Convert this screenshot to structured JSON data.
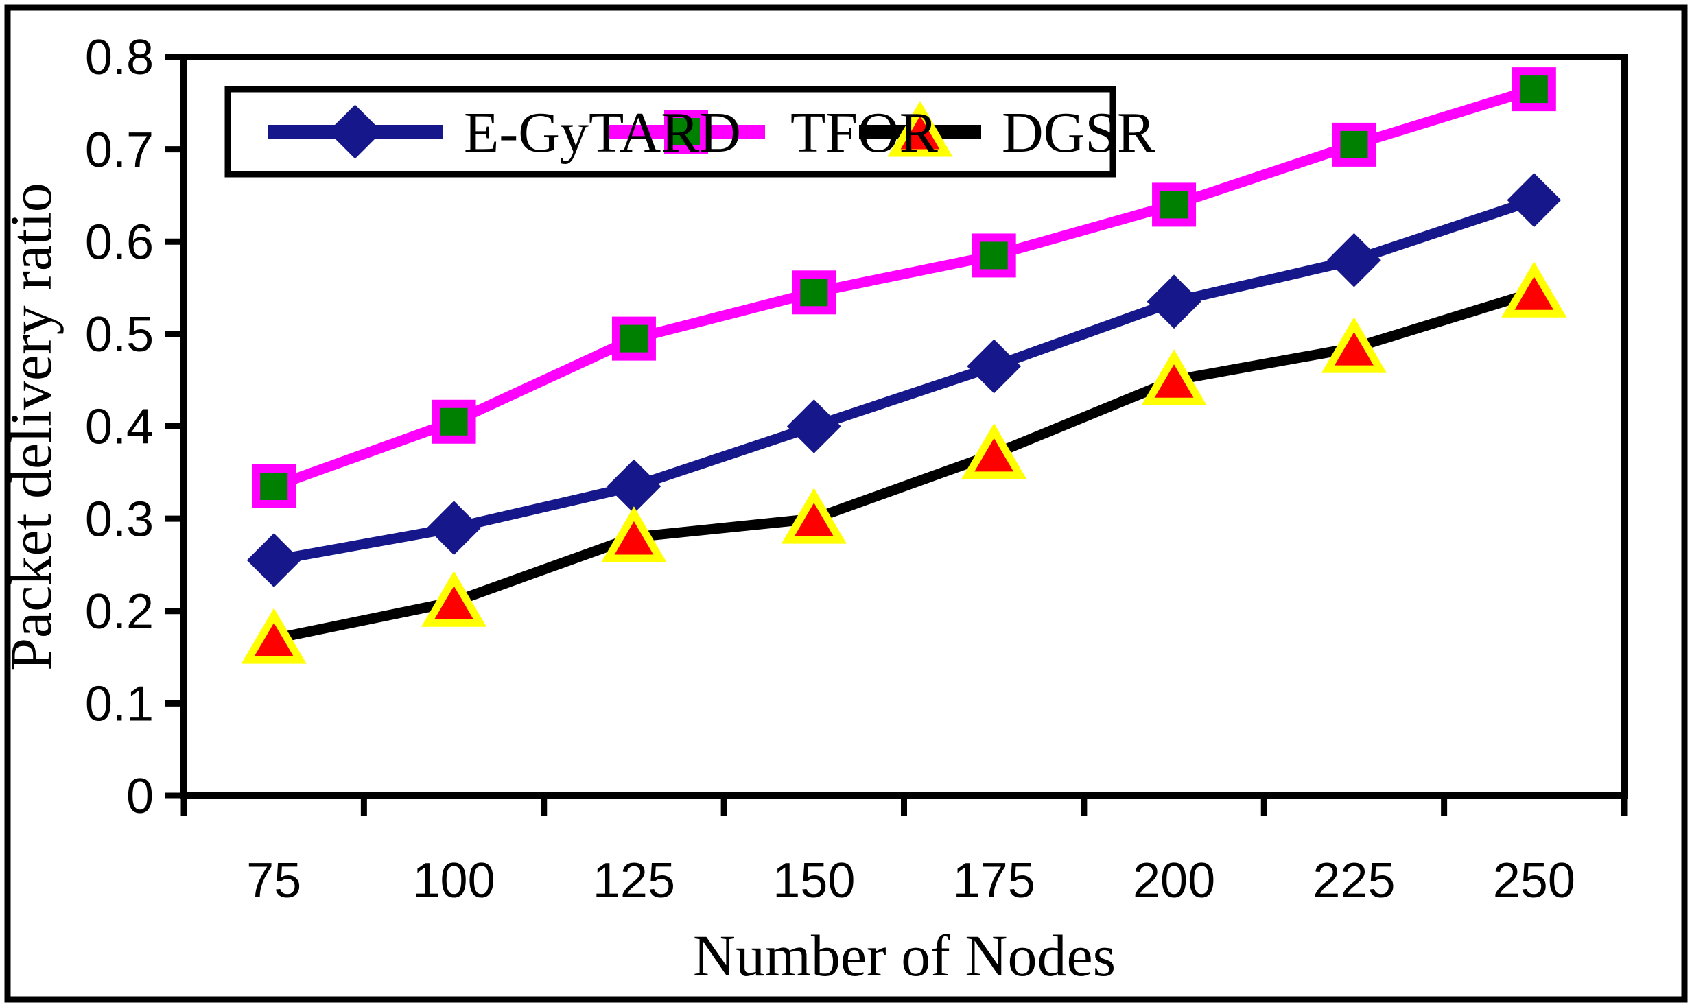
{
  "chart_data": {
    "type": "line",
    "title": "",
    "xlabel": "Number of Nodes",
    "ylabel": "Packet delivery ratio",
    "categories": [
      75,
      100,
      125,
      150,
      175,
      200,
      225,
      250
    ],
    "series": [
      {
        "name": "E-GyTARD",
        "line_color": "#17178C",
        "marker": "diamond",
        "marker_fill": "#17178C",
        "marker_stroke": "#17178C",
        "values": [
          0.255,
          0.29,
          0.335,
          0.4,
          0.465,
          0.535,
          0.58,
          0.645
        ]
      },
      {
        "name": "TFOR",
        "line_color": "#FF00FF",
        "marker": "square",
        "marker_fill": "#008000",
        "marker_stroke": "#FF00FF",
        "values": [
          0.335,
          0.405,
          0.495,
          0.545,
          0.585,
          0.64,
          0.705,
          0.765
        ]
      },
      {
        "name": "DGSR",
        "line_color": "#000000",
        "marker": "triangle",
        "marker_fill": "#FF0000",
        "marker_stroke": "#FFFF00",
        "values": [
          0.17,
          0.21,
          0.28,
          0.3,
          0.37,
          0.45,
          0.485,
          0.545
        ]
      }
    ],
    "ylim": [
      0,
      0.8
    ],
    "y_ticks": [
      0,
      0.1,
      0.2,
      0.3,
      0.4,
      0.5,
      0.6,
      0.7,
      0.8
    ],
    "y_tick_labels": [
      "0",
      "0.1",
      "0.2",
      "0.3",
      "0.4",
      "0.5",
      "0.6",
      "0.7",
      "0.8"
    ],
    "grid": false,
    "legend_position": "top-inside",
    "frame_color": "#000000",
    "background_color": "#FFFFFF"
  }
}
